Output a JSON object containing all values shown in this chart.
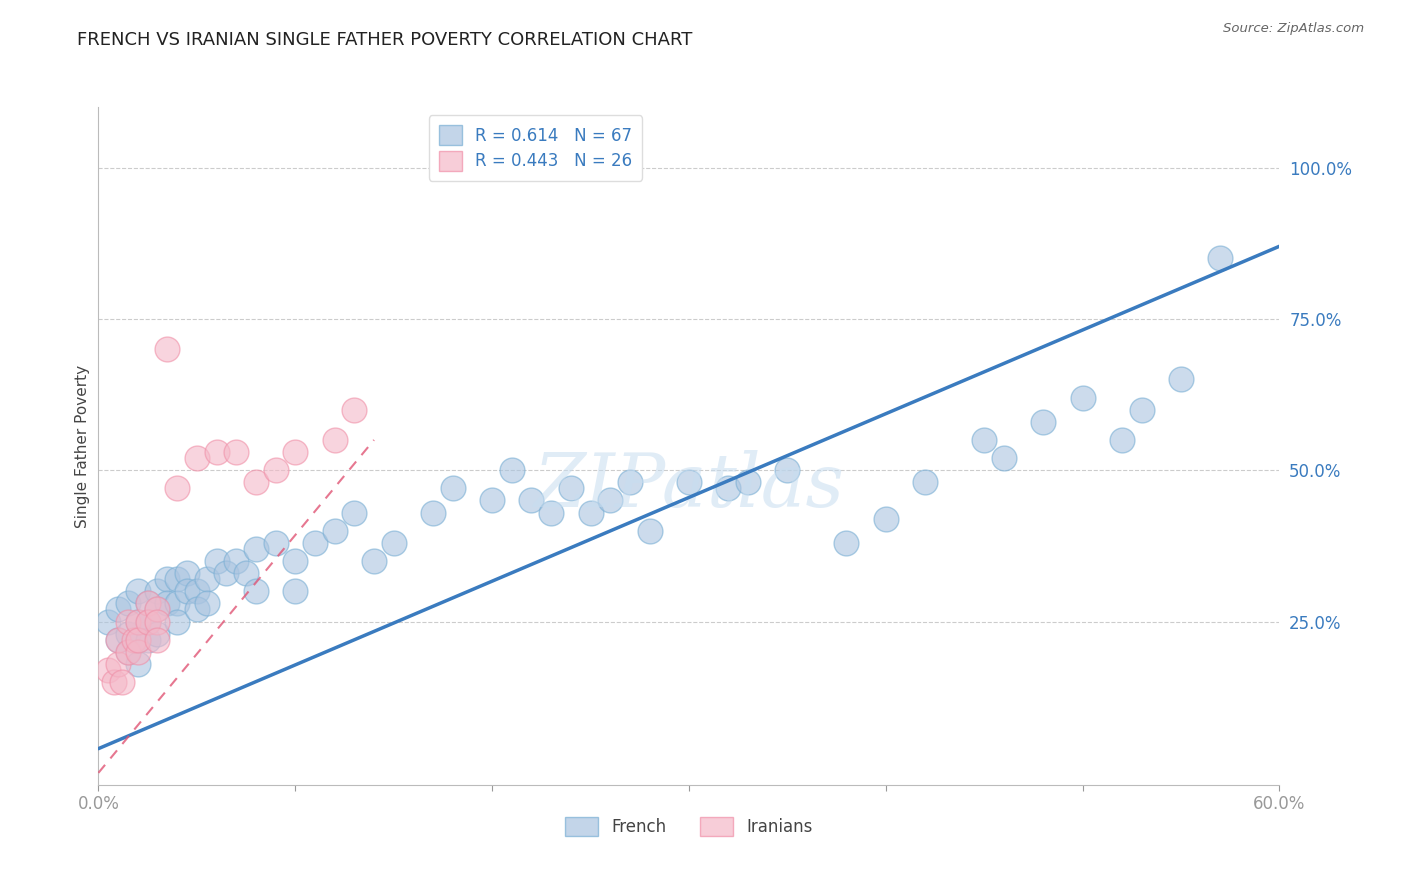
{
  "title": "FRENCH VS IRANIAN SINGLE FATHER POVERTY CORRELATION CHART",
  "source": "Source: ZipAtlas.com",
  "ylabel": "Single Father Poverty",
  "xlim": [
    0.0,
    0.6
  ],
  "ylim": [
    -0.02,
    1.1
  ],
  "x_ticks": [
    0.0,
    0.1,
    0.2,
    0.3,
    0.4,
    0.5,
    0.6
  ],
  "x_tick_labels": [
    "0.0%",
    "",
    "",
    "",
    "",
    "",
    "60.0%"
  ],
  "y_ticks": [
    0.25,
    0.5,
    0.75,
    1.0
  ],
  "y_tick_labels": [
    "25.0%",
    "50.0%",
    "75.0%",
    "100.0%"
  ],
  "french_R": 0.614,
  "french_N": 67,
  "iranian_R": 0.443,
  "iranian_N": 26,
  "french_color": "#aac4e0",
  "iranian_color": "#f4b8c8",
  "french_edge_color": "#7aafd4",
  "iranian_edge_color": "#f090a8",
  "french_line_color": "#3a7bbf",
  "iranian_line_color": "#e05575",
  "grid_color": "#cccccc",
  "watermark": "ZIPatlas",
  "french_x": [
    0.005,
    0.01,
    0.01,
    0.015,
    0.015,
    0.015,
    0.02,
    0.02,
    0.02,
    0.02,
    0.025,
    0.025,
    0.025,
    0.03,
    0.03,
    0.03,
    0.035,
    0.035,
    0.04,
    0.04,
    0.04,
    0.045,
    0.045,
    0.05,
    0.05,
    0.055,
    0.055,
    0.06,
    0.065,
    0.07,
    0.075,
    0.08,
    0.08,
    0.09,
    0.1,
    0.1,
    0.11,
    0.12,
    0.13,
    0.14,
    0.15,
    0.17,
    0.18,
    0.2,
    0.21,
    0.22,
    0.23,
    0.24,
    0.25,
    0.26,
    0.27,
    0.28,
    0.3,
    0.32,
    0.33,
    0.35,
    0.38,
    0.4,
    0.42,
    0.45,
    0.46,
    0.48,
    0.5,
    0.52,
    0.53,
    0.55,
    0.57
  ],
  "french_y": [
    0.25,
    0.27,
    0.22,
    0.28,
    0.23,
    0.2,
    0.3,
    0.25,
    0.22,
    0.18,
    0.28,
    0.25,
    0.22,
    0.3,
    0.27,
    0.23,
    0.32,
    0.28,
    0.32,
    0.28,
    0.25,
    0.33,
    0.3,
    0.3,
    0.27,
    0.32,
    0.28,
    0.35,
    0.33,
    0.35,
    0.33,
    0.37,
    0.3,
    0.38,
    0.35,
    0.3,
    0.38,
    0.4,
    0.43,
    0.35,
    0.38,
    0.43,
    0.47,
    0.45,
    0.5,
    0.45,
    0.43,
    0.47,
    0.43,
    0.45,
    0.48,
    0.4,
    0.48,
    0.47,
    0.48,
    0.5,
    0.38,
    0.42,
    0.48,
    0.55,
    0.52,
    0.58,
    0.62,
    0.55,
    0.6,
    0.65,
    0.85
  ],
  "iranian_x": [
    0.005,
    0.008,
    0.01,
    0.01,
    0.012,
    0.015,
    0.015,
    0.018,
    0.02,
    0.02,
    0.02,
    0.025,
    0.025,
    0.03,
    0.03,
    0.03,
    0.035,
    0.04,
    0.05,
    0.06,
    0.07,
    0.08,
    0.09,
    0.1,
    0.12,
    0.13
  ],
  "iranian_y": [
    0.17,
    0.15,
    0.18,
    0.22,
    0.15,
    0.2,
    0.25,
    0.22,
    0.25,
    0.2,
    0.22,
    0.28,
    0.25,
    0.27,
    0.25,
    0.22,
    0.7,
    0.47,
    0.52,
    0.53,
    0.53,
    0.48,
    0.5,
    0.53,
    0.55,
    0.6
  ],
  "french_line_x0": 0.0,
  "french_line_y0": 0.04,
  "french_line_x1": 0.6,
  "french_line_y1": 0.87,
  "iranian_line_x0": 0.0,
  "iranian_line_y0": 0.0,
  "iranian_line_x1": 0.14,
  "iranian_line_y1": 0.55
}
